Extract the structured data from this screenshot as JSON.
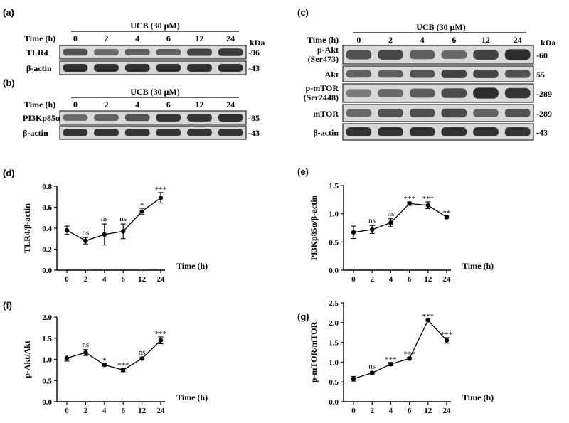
{
  "figure": {
    "blots_top_left": {
      "a": {
        "letter": "(a)",
        "time_label": "Time (h)",
        "treatment": "UCB (30 μM)",
        "times": [
          "0",
          "2",
          "4",
          "6",
          "12",
          "24"
        ],
        "kda_header": "kDa",
        "rows": [
          {
            "label": "TLR4",
            "kda": "96",
            "intensity": [
              0.7,
              0.55,
              0.62,
              0.62,
              0.78,
              0.85
            ]
          },
          {
            "label": "β-actin",
            "kda": "43",
            "intensity": [
              0.92,
              0.92,
              0.92,
              0.92,
              0.92,
              0.92
            ]
          }
        ]
      },
      "b": {
        "letter": "(b)",
        "time_label": "Time (h)",
        "treatment": "UCB (30 μM)",
        "times": [
          "0",
          "2",
          "4",
          "6",
          "12",
          "24"
        ],
        "rows": [
          {
            "label": "PI3Kp85α",
            "kda": "85",
            "intensity": [
              0.55,
              0.6,
              0.68,
              0.9,
              0.88,
              0.92
            ]
          },
          {
            "label": "β-actin",
            "kda": "43",
            "intensity": [
              0.88,
              0.88,
              0.88,
              0.88,
              0.88,
              0.88
            ]
          }
        ]
      }
    },
    "blots_top_right": {
      "letter": "(c)",
      "time_label": "Time (h)",
      "treatment": "UCB (30 μM)",
      "times": [
        "0",
        "2",
        "4",
        "6",
        "12",
        "24"
      ],
      "kda_header": "kDa",
      "rows": [
        {
          "label_lines": [
            "p-Akt",
            "(Ser473)"
          ],
          "kda": "60",
          "intensity": [
            0.72,
            0.78,
            0.62,
            0.55,
            0.8,
            0.95
          ]
        },
        {
          "label_lines": [
            "Akt"
          ],
          "kda": "55",
          "intensity": [
            0.6,
            0.62,
            0.68,
            0.8,
            0.78,
            0.72
          ]
        },
        {
          "label_lines": [
            "p-mTOR",
            "(Ser2448)"
          ],
          "kda": "289",
          "intensity": [
            0.45,
            0.55,
            0.65,
            0.75,
            0.95,
            0.88
          ]
        },
        {
          "label_lines": [
            "mTOR"
          ],
          "kda": "289",
          "intensity": [
            0.55,
            0.7,
            0.72,
            0.75,
            0.6,
            0.7
          ]
        },
        {
          "label_lines": [
            "β-actin"
          ],
          "kda": "43",
          "intensity": [
            0.9,
            0.9,
            0.9,
            0.9,
            0.9,
            0.9
          ]
        }
      ]
    }
  },
  "chart_data": [
    {
      "panel": "(d)",
      "type": "line",
      "categories": [
        "0",
        "2",
        "4",
        "6",
        "12",
        "24"
      ],
      "values": [
        0.38,
        0.28,
        0.34,
        0.37,
        0.56,
        0.69
      ],
      "errors": [
        0.04,
        0.03,
        0.1,
        0.07,
        0.03,
        0.05
      ],
      "significance": [
        "",
        "ns",
        "ns",
        "ns",
        "*",
        "***"
      ],
      "xlabel": "Time (h)",
      "ylabel": "TLR4/β-actin",
      "ylim": [
        0,
        0.8
      ],
      "yticks": [
        "0.0",
        "0.2",
        "0.4",
        "0.6",
        "0.8"
      ]
    },
    {
      "panel": "(e)",
      "type": "line",
      "categories": [
        "0",
        "2",
        "4",
        "6",
        "12",
        "24"
      ],
      "values": [
        0.67,
        0.72,
        0.84,
        1.18,
        1.15,
        0.94
      ],
      "errors": [
        0.11,
        0.07,
        0.07,
        0.03,
        0.06,
        0.02
      ],
      "significance": [
        "",
        "ns",
        "ns",
        "***",
        "***",
        "**"
      ],
      "xlabel": "Time (h)",
      "ylabel": "PI3Kp85α/β-actin",
      "ylim": [
        0,
        1.5
      ],
      "yticks": [
        "0.0",
        "0.5",
        "1.0",
        "1.5"
      ]
    },
    {
      "panel": "(f)",
      "type": "line",
      "categories": [
        "0",
        "2",
        "4",
        "6",
        "12",
        "24"
      ],
      "values": [
        1.03,
        1.16,
        0.87,
        0.75,
        1.02,
        1.45
      ],
      "errors": [
        0.07,
        0.07,
        0.03,
        0.04,
        0.02,
        0.08
      ],
      "significance": [
        "",
        "ns",
        "*",
        "***",
        "ns",
        "***"
      ],
      "xlabel": "Time (h)",
      "ylabel": "p-Akt/Akt",
      "ylim": [
        0,
        2.0
      ],
      "yticks": [
        "0.0",
        "0.5",
        "1.0",
        "1.5",
        "2.0"
      ]
    },
    {
      "panel": "(g)",
      "type": "line",
      "categories": [
        "0",
        "2",
        "4",
        "6",
        "12",
        "24"
      ],
      "values": [
        0.58,
        0.73,
        0.95,
        1.09,
        2.06,
        1.55
      ],
      "errors": [
        0.06,
        0.03,
        0.04,
        0.03,
        0.02,
        0.07
      ],
      "significance": [
        "",
        "ns",
        "***",
        "***",
        "***",
        "***"
      ],
      "xlabel": "Time (h)",
      "ylabel": "p-mTOR/mTOR",
      "ylim": [
        0,
        2.5
      ],
      "yticks": [
        "0.0",
        "0.5",
        "1.0",
        "1.5",
        "2.0",
        "2.5"
      ]
    }
  ]
}
